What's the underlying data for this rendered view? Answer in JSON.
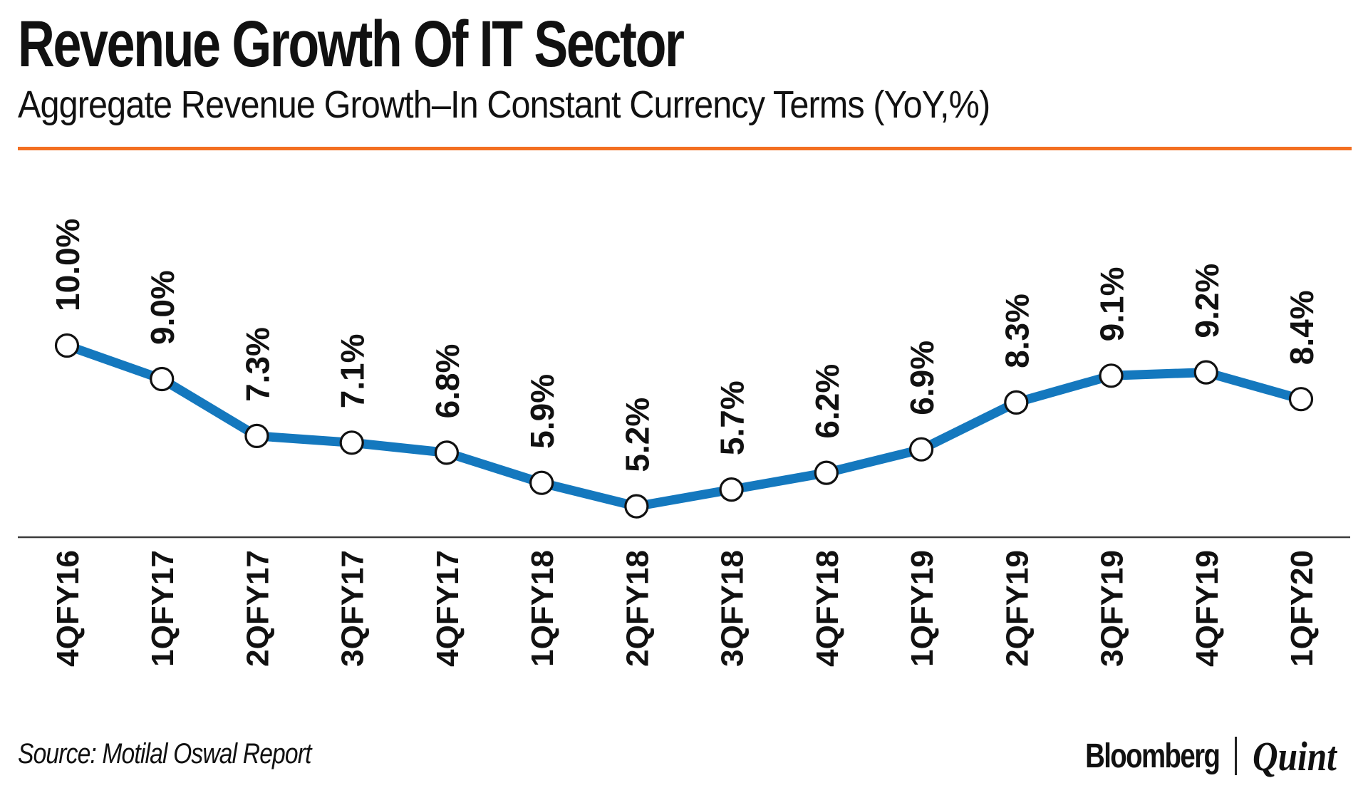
{
  "header": {
    "title": "Revenue Growth Of IT Sector",
    "subtitle": "Aggregate Revenue Growth–In Constant Currency Terms (YoY,%)",
    "accent_color": "#F36F21"
  },
  "chart_data": {
    "type": "line",
    "title": "Revenue Growth Of IT Sector",
    "subtitle": "Aggregate Revenue Growth–In Constant Currency Terms (YoY,%)",
    "categories": [
      "4QFY16",
      "1QFY17",
      "2QFY17",
      "3QFY17",
      "4QFY17",
      "1QFY18",
      "2QFY18",
      "3QFY18",
      "4QFY18",
      "1QFY19",
      "2QFY19",
      "3QFY19",
      "4QFY19",
      "1QFY20"
    ],
    "values": [
      10.0,
      9.0,
      7.3,
      7.1,
      6.8,
      5.9,
      5.2,
      5.7,
      6.2,
      6.9,
      8.3,
      9.1,
      9.2,
      8.4
    ],
    "point_labels": [
      "10.0%",
      "9.0%",
      "7.3%",
      "7.1%",
      "6.8%",
      "5.9%",
      "5.2%",
      "5.7%",
      "6.2%",
      "6.9%",
      "8.3%",
      "9.1%",
      "9.2%",
      "8.4%"
    ],
    "ylim": [
      5.0,
      10.5
    ],
    "grid": false,
    "legend": false,
    "line_color": "#1478BE",
    "marker_fill": "#FFFFFF",
    "marker_stroke": "#111111",
    "label_color": "#111111",
    "axis_line_color": "#3C3C3C"
  },
  "footer": {
    "source": "Source: Motilal Oswal Report",
    "brand_primary": "Bloomberg",
    "brand_secondary": "Quint"
  }
}
